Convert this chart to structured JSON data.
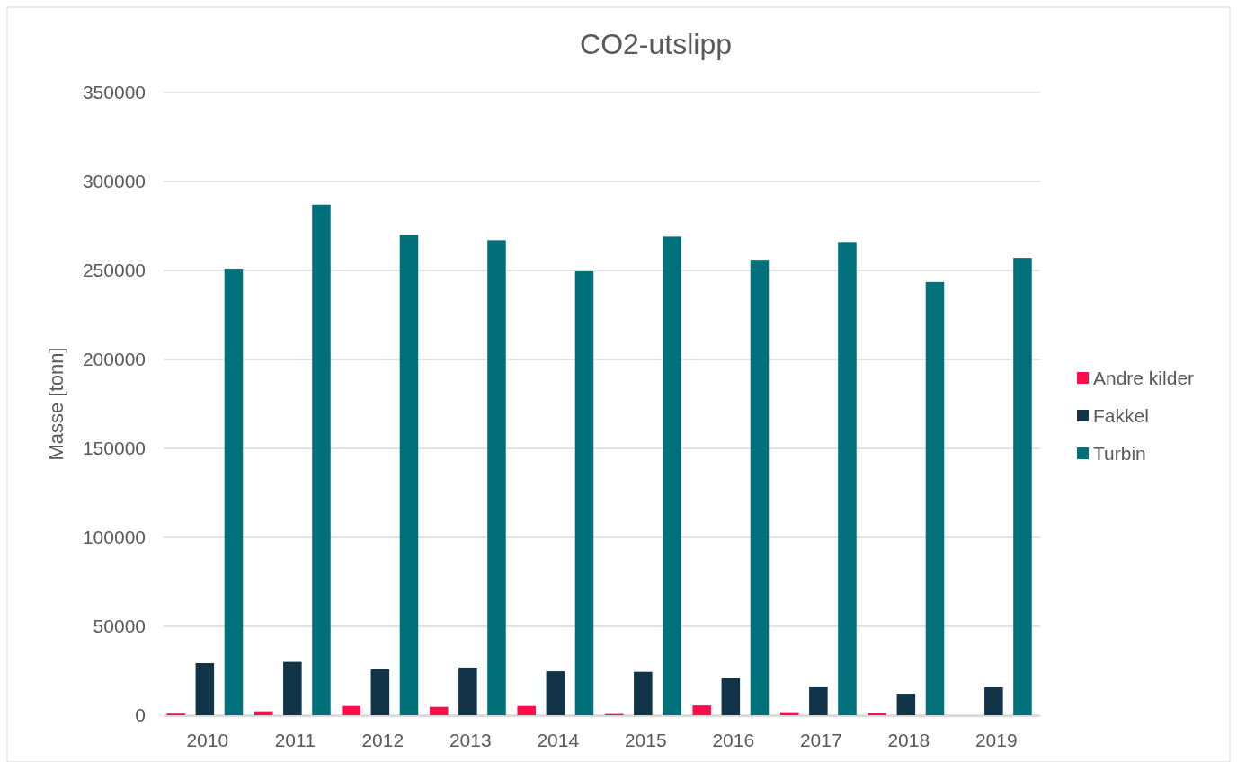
{
  "chart_data": {
    "type": "bar",
    "title": "CO2-utslipp",
    "ylabel": "Masse [tonn]",
    "categories": [
      "2010",
      "2011",
      "2012",
      "2013",
      "2014",
      "2015",
      "2016",
      "2017",
      "2018",
      "2019"
    ],
    "series": [
      {
        "name": "Andre kilder",
        "color": "#ff0d4a",
        "values": [
          900,
          2200,
          5200,
          4700,
          5200,
          700,
          5500,
          1700,
          1200,
          null
        ]
      },
      {
        "name": "Fakkel",
        "color": "#113448",
        "values": [
          29300,
          30000,
          26000,
          26800,
          24700,
          24400,
          21000,
          16200,
          12100,
          15700
        ]
      },
      {
        "name": "Turbin",
        "color": "#00707a",
        "values": [
          251000,
          287000,
          270000,
          267000,
          249500,
          269000,
          256000,
          266000,
          243500,
          257000
        ]
      }
    ],
    "ylim": [
      0,
      350000
    ],
    "yticks": [
      0,
      50000,
      100000,
      150000,
      200000,
      250000,
      300000,
      350000
    ],
    "grid": "y",
    "legend": "right"
  }
}
